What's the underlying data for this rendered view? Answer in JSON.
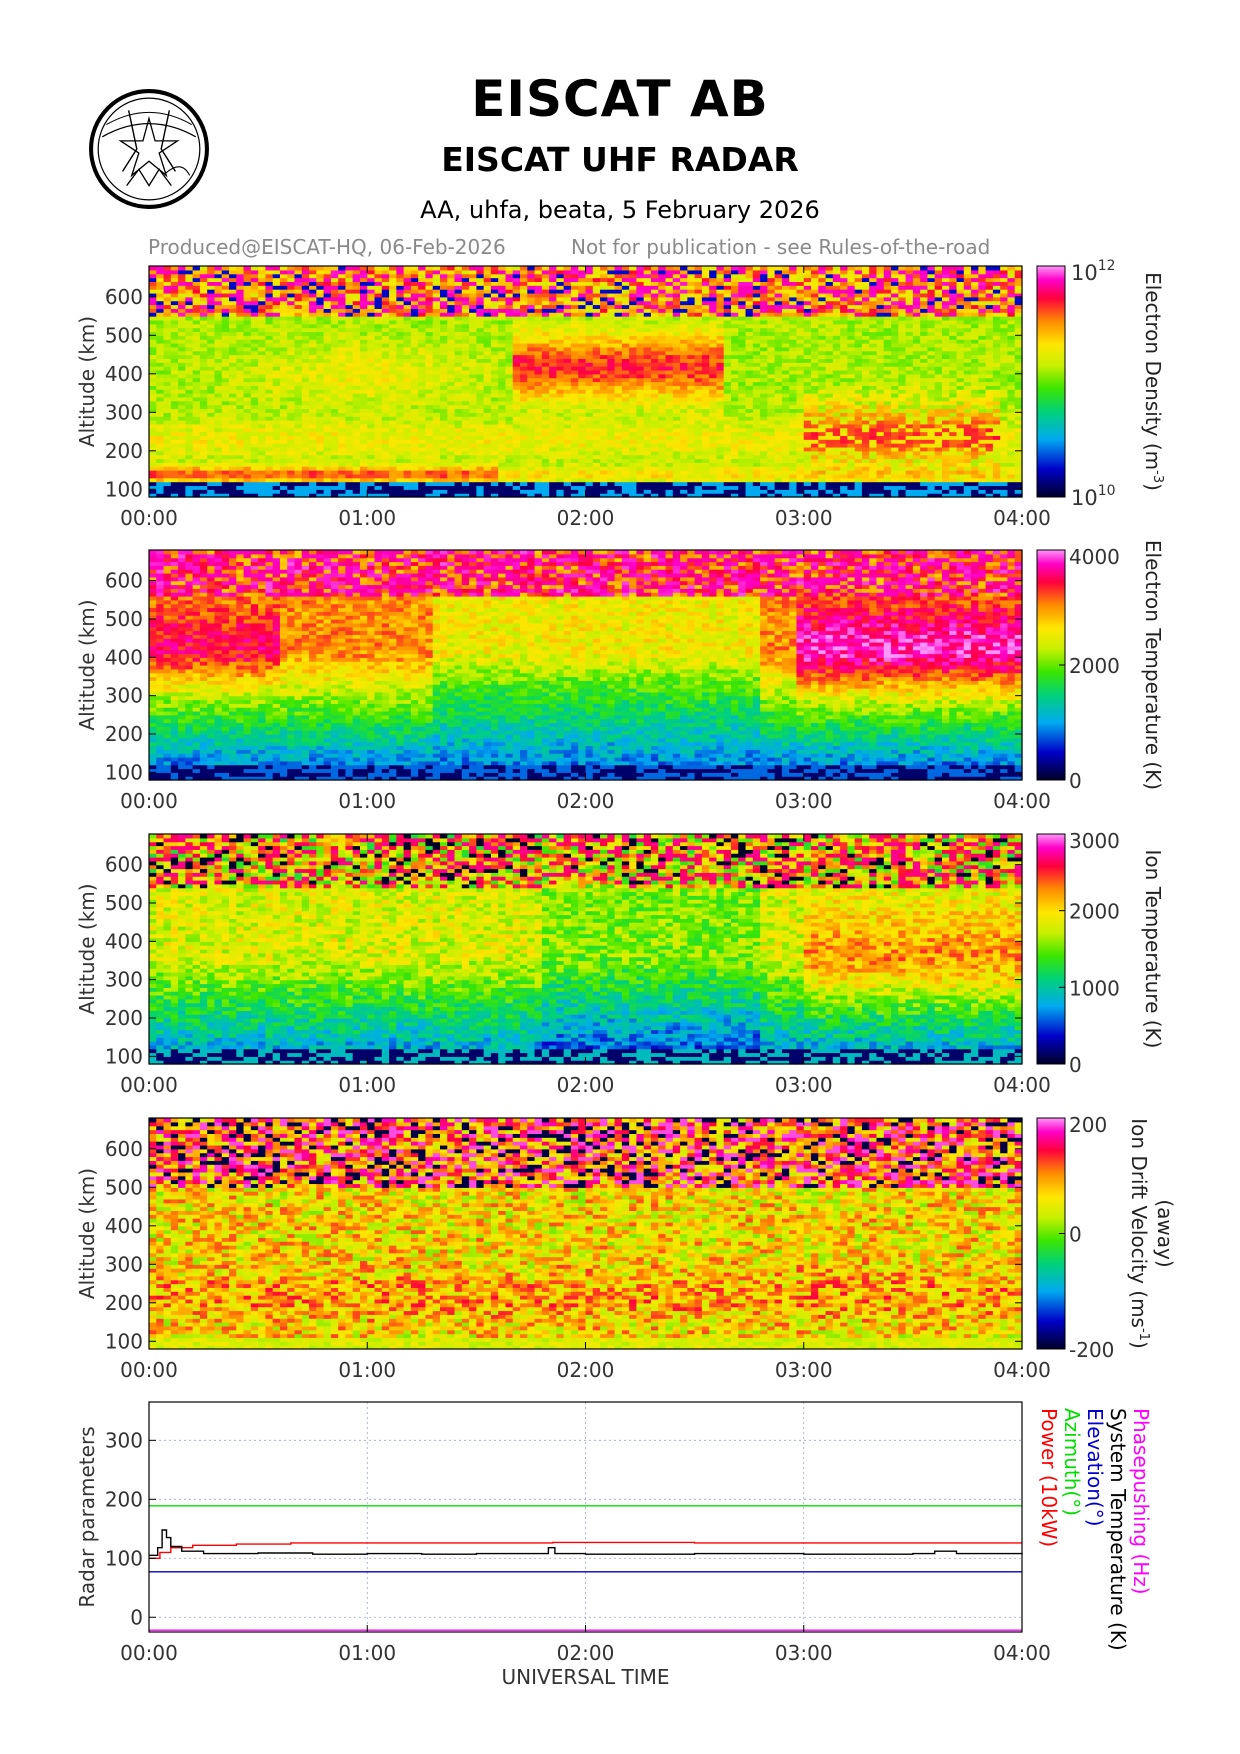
{
  "header": {
    "title": "EISCAT AB",
    "subtitle": "EISCAT UHF RADAR",
    "run_info": "AA, uhfa, beata, 5 February 2026",
    "produced": "Produced@EISCAT-HQ, 06-Feb-2026",
    "notice": "Not for publication - see Rules-of-the-road",
    "logo": "eiscat-logo"
  },
  "colors": {
    "grid": "#9aa6c8",
    "power": "#ff0000",
    "azimuth": "#00dd00",
    "elevation": "#0000cc",
    "system_temperature": "#000000",
    "phasepushing": "#ff00ff"
  },
  "chart_data": [
    {
      "type": "heatmap",
      "title": "Electron Density",
      "ylabel": "Altitude (km)",
      "xlim": [
        "00:00",
        "04:00"
      ],
      "ylim": [
        80,
        680
      ],
      "x_ticks": [
        "00:00",
        "01:00",
        "02:00",
        "03:00",
        "04:00"
      ],
      "y_ticks": [
        100,
        200,
        300,
        400,
        500,
        600
      ],
      "colorbar": {
        "label": "Electron Density (m",
        "label_suffix": ")",
        "label_exponent": "-3",
        "scale": "log",
        "range": [
          10000000000,
          1000000000000
        ],
        "ticks": [
          {
            "base": "10",
            "exp": "10"
          },
          {
            "base": "10",
            "exp": "12"
          }
        ]
      }
    },
    {
      "type": "heatmap",
      "title": "Electron Temperature",
      "ylabel": "Altitude (km)",
      "xlim": [
        "00:00",
        "04:00"
      ],
      "ylim": [
        80,
        680
      ],
      "x_ticks": [
        "00:00",
        "01:00",
        "02:00",
        "03:00",
        "04:00"
      ],
      "y_ticks": [
        100,
        200,
        300,
        400,
        500,
        600
      ],
      "colorbar": {
        "label": "Electron Temperature (K)",
        "scale": "linear",
        "range": [
          0,
          4000
        ],
        "ticks": [
          0,
          2000,
          4000
        ]
      }
    },
    {
      "type": "heatmap",
      "title": "Ion Temperature",
      "ylabel": "Altitude (km)",
      "xlim": [
        "00:00",
        "04:00"
      ],
      "ylim": [
        80,
        680
      ],
      "x_ticks": [
        "00:00",
        "01:00",
        "02:00",
        "03:00",
        "04:00"
      ],
      "y_ticks": [
        100,
        200,
        300,
        400,
        500,
        600
      ],
      "colorbar": {
        "label": "Ion Temperature (K)",
        "scale": "linear",
        "range": [
          0,
          3000
        ],
        "ticks": [
          0,
          1000,
          2000,
          3000
        ]
      }
    },
    {
      "type": "heatmap",
      "title": "Ion Drift Velocity",
      "ylabel": "Altitude (km)",
      "xlim": [
        "00:00",
        "04:00"
      ],
      "ylim": [
        80,
        680
      ],
      "x_ticks": [
        "00:00",
        "01:00",
        "02:00",
        "03:00",
        "04:00"
      ],
      "y_ticks": [
        100,
        200,
        300,
        400,
        500,
        600
      ],
      "colorbar": {
        "label": "Ion Drift Velocity (ms",
        "label_suffix": ")",
        "label_exponent": "-1",
        "label_line2": "(away)",
        "scale": "linear",
        "range": [
          -200,
          200
        ],
        "ticks": [
          -200,
          0,
          200
        ]
      }
    },
    {
      "type": "line",
      "ylabel": "Radar parameters",
      "xlabel": "UNIVERSAL TIME",
      "xlim": [
        "00:00",
        "04:00"
      ],
      "ylim": [
        -25,
        365
      ],
      "x_ticks": [
        "00:00",
        "01:00",
        "02:00",
        "03:00",
        "04:00"
      ],
      "y_ticks": [
        0,
        100,
        200,
        300
      ],
      "grid": true,
      "series": [
        {
          "name": "Power (10kW)",
          "color": "#ff0000",
          "x": [
            0.0,
            0.05,
            0.1,
            0.2,
            0.4,
            0.63,
            0.65,
            1.0,
            1.8,
            1.85,
            2.5,
            3.0,
            3.5,
            4.0
          ],
          "values": [
            100,
            110,
            118,
            122,
            124,
            124,
            126,
            126,
            126,
            127,
            126,
            126,
            126,
            126
          ]
        },
        {
          "name": "Azimuth(°)",
          "color": "#00dd00",
          "x": [
            0.0,
            4.0
          ],
          "values": [
            189,
            189
          ]
        },
        {
          "name": "Elevation(°)",
          "color": "#0000cc",
          "x": [
            0.0,
            4.0
          ],
          "values": [
            77,
            77
          ]
        },
        {
          "name": "System Temperature (K)",
          "color": "#000000",
          "x": [
            0.0,
            0.04,
            0.06,
            0.08,
            0.1,
            0.15,
            0.25,
            0.5,
            0.75,
            1.0,
            1.25,
            1.5,
            1.8,
            1.83,
            1.86,
            2.0,
            2.5,
            3.0,
            3.5,
            3.6,
            3.7,
            4.0
          ],
          "values": [
            105,
            118,
            148,
            135,
            120,
            112,
            108,
            109,
            107,
            108,
            107,
            108,
            108,
            118,
            108,
            107,
            108,
            107,
            108,
            112,
            108,
            107
          ]
        },
        {
          "name": "Phasepushing (Hz)",
          "color": "#ff00ff",
          "x": [
            0.0,
            4.0
          ],
          "values": [
            -22,
            -22
          ]
        }
      ]
    }
  ]
}
